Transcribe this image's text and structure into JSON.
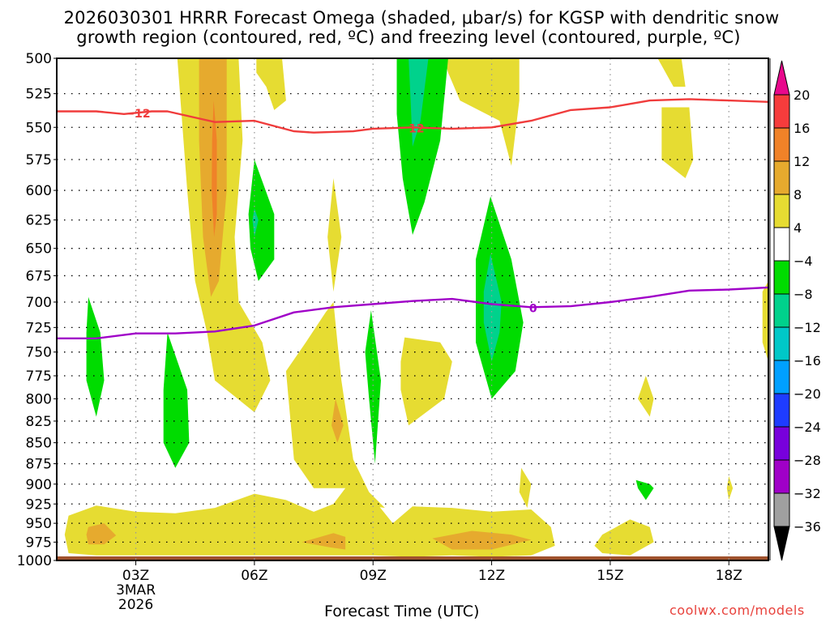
{
  "chart_data": {
    "type": "contour",
    "title_line1": "2026030301 HRRR Forecast Omega (shaded, μbar/s) for KGSP with dendritic snow",
    "title_line2": "growth region (contoured, red, ºC) and freezing level (contoured, purple, ºC)",
    "xlabel": "Forecast Time (UTC)",
    "ylabel": "",
    "credit": "coolwx.com/models",
    "x_range_hours": [
      1,
      19
    ],
    "y_range_hpa": [
      500,
      1000
    ],
    "y_scale": "log-pressure (inverted)",
    "grid": "dotted",
    "y_ticks": [
      500,
      525,
      550,
      575,
      600,
      625,
      650,
      675,
      700,
      725,
      750,
      775,
      800,
      825,
      850,
      875,
      900,
      925,
      950,
      975,
      1000
    ],
    "x_ticks": [
      {
        "hour": 3,
        "label": "03Z",
        "sub1": "3MAR",
        "sub2": "2026"
      },
      {
        "hour": 6,
        "label": "06Z"
      },
      {
        "hour": 9,
        "label": "09Z"
      },
      {
        "hour": 12,
        "label": "12Z"
      },
      {
        "hour": 15,
        "label": "15Z"
      },
      {
        "hour": 18,
        "label": "18Z"
      }
    ],
    "colorbar": {
      "label_values": [
        "20",
        "16",
        "12",
        "8",
        "4",
        "−4",
        "−8",
        "−12",
        "−16",
        "−20",
        "−24",
        "−28",
        "−32",
        "−36"
      ],
      "top_arrow_color": "#e8088c",
      "bottom_arrow_color": "#000000",
      "bins": [
        {
          "range": "16 to 20",
          "color": "#f63c3c"
        },
        {
          "range": "12 to 16",
          "color": "#f08228"
        },
        {
          "range": "8 to 12",
          "color": "#e6aa2e"
        },
        {
          "range": "4 to 8",
          "color": "#e6dc32"
        },
        {
          "range": "-4 to 4",
          "color": "#ffffff"
        },
        {
          "range": "-8 to -4",
          "color": "#00dc00"
        },
        {
          "range": "-12 to -8",
          "color": "#00d28c"
        },
        {
          "range": "-16 to -12",
          "color": "#00c8c8"
        },
        {
          "range": "-20 to -16",
          "color": "#00a0ff"
        },
        {
          "range": "-24 to -20",
          "color": "#1e3cff"
        },
        {
          "range": "-28 to -24",
          "color": "#7800dc"
        },
        {
          "range": "-32 to -28",
          "color": "#a000c8"
        },
        {
          "range": "-36 to -32",
          "color": "#a0a0a0"
        }
      ]
    },
    "contour_lines": [
      {
        "name": "dendritic-minus12",
        "label": "−12",
        "label2": "12",
        "color": "#f03c3c",
        "points": [
          [
            1,
            538
          ],
          [
            2,
            538
          ],
          [
            2.7,
            540
          ],
          [
            3.4,
            538
          ],
          [
            3.8,
            538
          ],
          [
            5,
            546
          ],
          [
            6,
            545
          ],
          [
            7,
            553
          ],
          [
            7.5,
            554
          ],
          [
            8.5,
            553
          ],
          [
            9,
            551
          ],
          [
            10,
            550
          ],
          [
            11,
            551
          ],
          [
            12,
            550
          ],
          [
            13,
            545
          ],
          [
            14,
            537
          ],
          [
            15,
            535
          ],
          [
            16,
            530
          ],
          [
            17,
            529
          ],
          [
            18,
            530
          ],
          [
            19,
            531
          ]
        ]
      },
      {
        "name": "freezing-level-0",
        "label": "0",
        "color": "#a000c8",
        "points": [
          [
            1,
            736
          ],
          [
            2,
            736
          ],
          [
            3,
            731
          ],
          [
            4,
            731
          ],
          [
            5,
            729
          ],
          [
            6,
            723
          ],
          [
            7,
            710
          ],
          [
            8,
            705
          ],
          [
            9,
            702
          ],
          [
            10,
            699
          ],
          [
            11,
            697
          ],
          [
            12,
            702
          ],
          [
            13,
            705
          ],
          [
            14,
            704
          ],
          [
            15,
            700
          ],
          [
            16,
            695
          ],
          [
            17,
            689
          ],
          [
            18,
            688
          ],
          [
            19,
            686
          ]
        ]
      }
    ],
    "shaded_regions": [
      {
        "bin": "4 to 8",
        "points": [
          [
            4.05,
            500
          ],
          [
            5.6,
            500
          ],
          [
            5.7,
            560
          ],
          [
            5.5,
            640
          ],
          [
            5.6,
            700
          ],
          [
            6.2,
            740
          ],
          [
            6.4,
            780
          ],
          [
            6.0,
            815
          ],
          [
            5.0,
            780
          ],
          [
            4.8,
            730
          ],
          [
            4.5,
            680
          ],
          [
            4.3,
            600
          ]
        ]
      },
      {
        "bin": "8 to 12",
        "points": [
          [
            4.6,
            500
          ],
          [
            5.3,
            500
          ],
          [
            5.3,
            600
          ],
          [
            5.1,
            680
          ],
          [
            4.9,
            695
          ],
          [
            4.7,
            640
          ],
          [
            4.6,
            560
          ]
        ]
      },
      {
        "bin": "12 to 16",
        "points": [
          [
            4.97,
            530
          ],
          [
            5.05,
            560
          ],
          [
            5.05,
            620
          ],
          [
            4.98,
            640
          ],
          [
            4.92,
            600
          ],
          [
            4.93,
            560
          ]
        ]
      },
      {
        "bin": "4 to 8",
        "points": [
          [
            6.05,
            500
          ],
          [
            6.7,
            500
          ],
          [
            6.8,
            530
          ],
          [
            6.5,
            537
          ],
          [
            6.3,
            520
          ],
          [
            6.05,
            510
          ]
        ]
      },
      {
        "bin": "4 to 8",
        "points": [
          [
            8.0,
            590
          ],
          [
            8.2,
            640
          ],
          [
            8.0,
            690
          ],
          [
            7.85,
            640
          ]
        ]
      },
      {
        "bin": "4 to 8",
        "points": [
          [
            8.0,
            700
          ],
          [
            8.1,
            740
          ],
          [
            8.2,
            780
          ],
          [
            8.5,
            870
          ],
          [
            8.9,
            910
          ],
          [
            9.3,
            930
          ],
          [
            8.6,
            925
          ],
          [
            8.3,
            905
          ],
          [
            7.5,
            905
          ],
          [
            7.0,
            870
          ],
          [
            6.8,
            770
          ],
          [
            7.3,
            740
          ],
          [
            7.8,
            710
          ]
        ]
      },
      {
        "bin": "8 to 12",
        "points": [
          [
            8.05,
            800
          ],
          [
            8.25,
            830
          ],
          [
            8.1,
            850
          ],
          [
            7.95,
            830
          ]
        ]
      },
      {
        "bin": "4 to 8",
        "points": [
          [
            9.8,
            735
          ],
          [
            10.7,
            740
          ],
          [
            11.0,
            760
          ],
          [
            10.8,
            800
          ],
          [
            9.9,
            830
          ],
          [
            9.7,
            790
          ],
          [
            9.7,
            760
          ]
        ]
      },
      {
        "bin": "4 to 8",
        "points": [
          [
            10.8,
            500
          ],
          [
            12.7,
            500
          ],
          [
            12.7,
            530
          ],
          [
            12.5,
            580
          ],
          [
            12.2,
            545
          ],
          [
            11.2,
            530
          ],
          [
            10.9,
            510
          ]
        ]
      },
      {
        "bin": "4 to 8",
        "points": [
          [
            16.2,
            500
          ],
          [
            16.8,
            500
          ],
          [
            16.9,
            520
          ],
          [
            16.6,
            520
          ]
        ]
      },
      {
        "bin": "4 to 8",
        "points": [
          [
            16.3,
            535
          ],
          [
            17.0,
            535
          ],
          [
            17.1,
            575
          ],
          [
            16.9,
            590
          ],
          [
            16.3,
            575
          ]
        ]
      },
      {
        "bin": "4 to 8",
        "points": [
          [
            18.85,
            690
          ],
          [
            19,
            680
          ],
          [
            19,
            760
          ],
          [
            18.85,
            740
          ]
        ]
      },
      {
        "bin": "4 to 8",
        "points": [
          [
            15.9,
            775
          ],
          [
            16.1,
            800
          ],
          [
            16.0,
            820
          ],
          [
            15.7,
            800
          ]
        ]
      },
      {
        "bin": "4 to 8",
        "points": [
          [
            18.0,
            890
          ],
          [
            18.1,
            905
          ],
          [
            18.0,
            920
          ],
          [
            17.95,
            905
          ]
        ]
      },
      {
        "bin": "4 to 8",
        "points": [
          [
            12.75,
            880
          ],
          [
            13.0,
            900
          ],
          [
            12.9,
            930
          ],
          [
            12.7,
            910
          ]
        ]
      },
      {
        "bin": "4 to 8",
        "points": [
          [
            1.3,
            940
          ],
          [
            2.0,
            927
          ],
          [
            3.0,
            935
          ],
          [
            4.0,
            937
          ],
          [
            5.0,
            930
          ],
          [
            6.0,
            912
          ],
          [
            6.8,
            920
          ],
          [
            7.5,
            935
          ],
          [
            8.0,
            925
          ],
          [
            8.3,
            905
          ],
          [
            8.9,
            912
          ],
          [
            9.5,
            950
          ],
          [
            10.0,
            928
          ],
          [
            11.0,
            930
          ],
          [
            12.0,
            935
          ],
          [
            13.0,
            932
          ],
          [
            13.5,
            955
          ],
          [
            13.6,
            980
          ],
          [
            13.0,
            993
          ],
          [
            12.0,
            995
          ],
          [
            11.0,
            993
          ],
          [
            10.0,
            995
          ],
          [
            9.0,
            993
          ],
          [
            8.0,
            993
          ],
          [
            7.0,
            993
          ],
          [
            6.0,
            993
          ],
          [
            5.0,
            993
          ],
          [
            4.0,
            993
          ],
          [
            3.0,
            993
          ],
          [
            2.0,
            993
          ],
          [
            1.3,
            990
          ],
          [
            1.2,
            965
          ]
        ]
      },
      {
        "bin": "4 to 8",
        "points": [
          [
            14.8,
            965
          ],
          [
            15.5,
            945
          ],
          [
            16.0,
            955
          ],
          [
            16.1,
            975
          ],
          [
            15.5,
            993
          ],
          [
            14.8,
            990
          ],
          [
            14.6,
            980
          ]
        ]
      },
      {
        "bin": "8 to 12",
        "points": [
          [
            1.8,
            955
          ],
          [
            2.2,
            950
          ],
          [
            2.5,
            966
          ],
          [
            2.2,
            978
          ],
          [
            1.8,
            978
          ],
          [
            1.75,
            965
          ]
        ]
      },
      {
        "bin": "8 to 12",
        "points": [
          [
            7.2,
            975
          ],
          [
            8.0,
            963
          ],
          [
            8.3,
            968
          ],
          [
            8.3,
            985
          ],
          [
            7.9,
            982
          ]
        ]
      },
      {
        "bin": "8 to 12",
        "points": [
          [
            10.5,
            970
          ],
          [
            11.5,
            960
          ],
          [
            12.5,
            965
          ],
          [
            13.0,
            972
          ],
          [
            12.0,
            985
          ],
          [
            11.0,
            985
          ]
        ]
      },
      {
        "bin": "-8 to -4",
        "points": [
          [
            1.8,
            695
          ],
          [
            2.1,
            730
          ],
          [
            2.2,
            780
          ],
          [
            2.0,
            820
          ],
          [
            1.75,
            780
          ],
          [
            1.75,
            730
          ]
        ]
      },
      {
        "bin": "-8 to -4",
        "points": [
          [
            3.8,
            730
          ],
          [
            4.3,
            790
          ],
          [
            4.35,
            850
          ],
          [
            4.0,
            880
          ],
          [
            3.7,
            850
          ],
          [
            3.7,
            790
          ]
        ]
      },
      {
        "bin": "-8 to -4",
        "points": [
          [
            6.0,
            575
          ],
          [
            6.5,
            620
          ],
          [
            6.5,
            660
          ],
          [
            6.1,
            680
          ],
          [
            5.9,
            650
          ],
          [
            5.85,
            620
          ]
        ]
      },
      {
        "bin": "-12 to -8",
        "points": [
          [
            6.0,
            615
          ],
          [
            6.1,
            625
          ],
          [
            6.0,
            640
          ],
          [
            5.95,
            625
          ]
        ]
      },
      {
        "bin": "-8 to -4",
        "points": [
          [
            9.6,
            500
          ],
          [
            10.9,
            500
          ],
          [
            10.7,
            560
          ],
          [
            10.3,
            610
          ],
          [
            10.0,
            638
          ],
          [
            9.75,
            590
          ],
          [
            9.6,
            540
          ]
        ]
      },
      {
        "bin": "-12 to -8",
        "points": [
          [
            9.9,
            500
          ],
          [
            10.4,
            500
          ],
          [
            10.2,
            545
          ],
          [
            10.0,
            565
          ],
          [
            9.95,
            530
          ]
        ]
      },
      {
        "bin": "-8 to -4",
        "points": [
          [
            11.97,
            605
          ],
          [
            12.5,
            660
          ],
          [
            12.8,
            720
          ],
          [
            12.6,
            770
          ],
          [
            12.0,
            800
          ],
          [
            11.6,
            740
          ],
          [
            11.6,
            660
          ]
        ]
      },
      {
        "bin": "-12 to -8",
        "points": [
          [
            11.97,
            655
          ],
          [
            12.25,
            700
          ],
          [
            12.2,
            730
          ],
          [
            12.0,
            760
          ],
          [
            11.8,
            720
          ],
          [
            11.8,
            690
          ]
        ]
      },
      {
        "bin": "-8 to -4",
        "points": [
          [
            8.95,
            708
          ],
          [
            9.2,
            780
          ],
          [
            9.05,
            875
          ],
          [
            8.9,
            800
          ],
          [
            8.8,
            750
          ]
        ]
      },
      {
        "bin": "-8 to -4",
        "points": [
          [
            15.65,
            895
          ],
          [
            16.0,
            900
          ],
          [
            16.1,
            905
          ],
          [
            15.9,
            920
          ],
          [
            15.7,
            905
          ]
        ]
      }
    ],
    "surface_band_color": "#a0522d"
  }
}
